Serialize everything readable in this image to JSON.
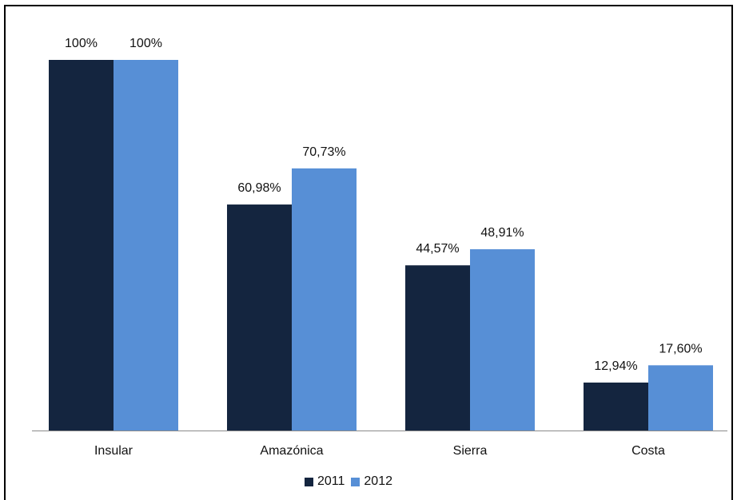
{
  "chart_data": {
    "type": "bar",
    "categories": [
      "Insular",
      "Amazónica",
      "Sierra",
      "Costa"
    ],
    "series": [
      {
        "name": "2011",
        "color": "#14253f",
        "values": [
          100,
          60.98,
          44.57,
          12.94
        ],
        "labels": [
          "100%",
          "60,98%",
          "44,57%",
          "12,94%"
        ]
      },
      {
        "name": "2012",
        "color": "#578fd6",
        "values": [
          100,
          70.73,
          48.91,
          17.6
        ],
        "labels": [
          "100%",
          "70,73%",
          "48,91%",
          "17,60%"
        ]
      }
    ],
    "ylim": [
      0,
      100
    ],
    "grid": false,
    "legend_position": "bottom"
  }
}
